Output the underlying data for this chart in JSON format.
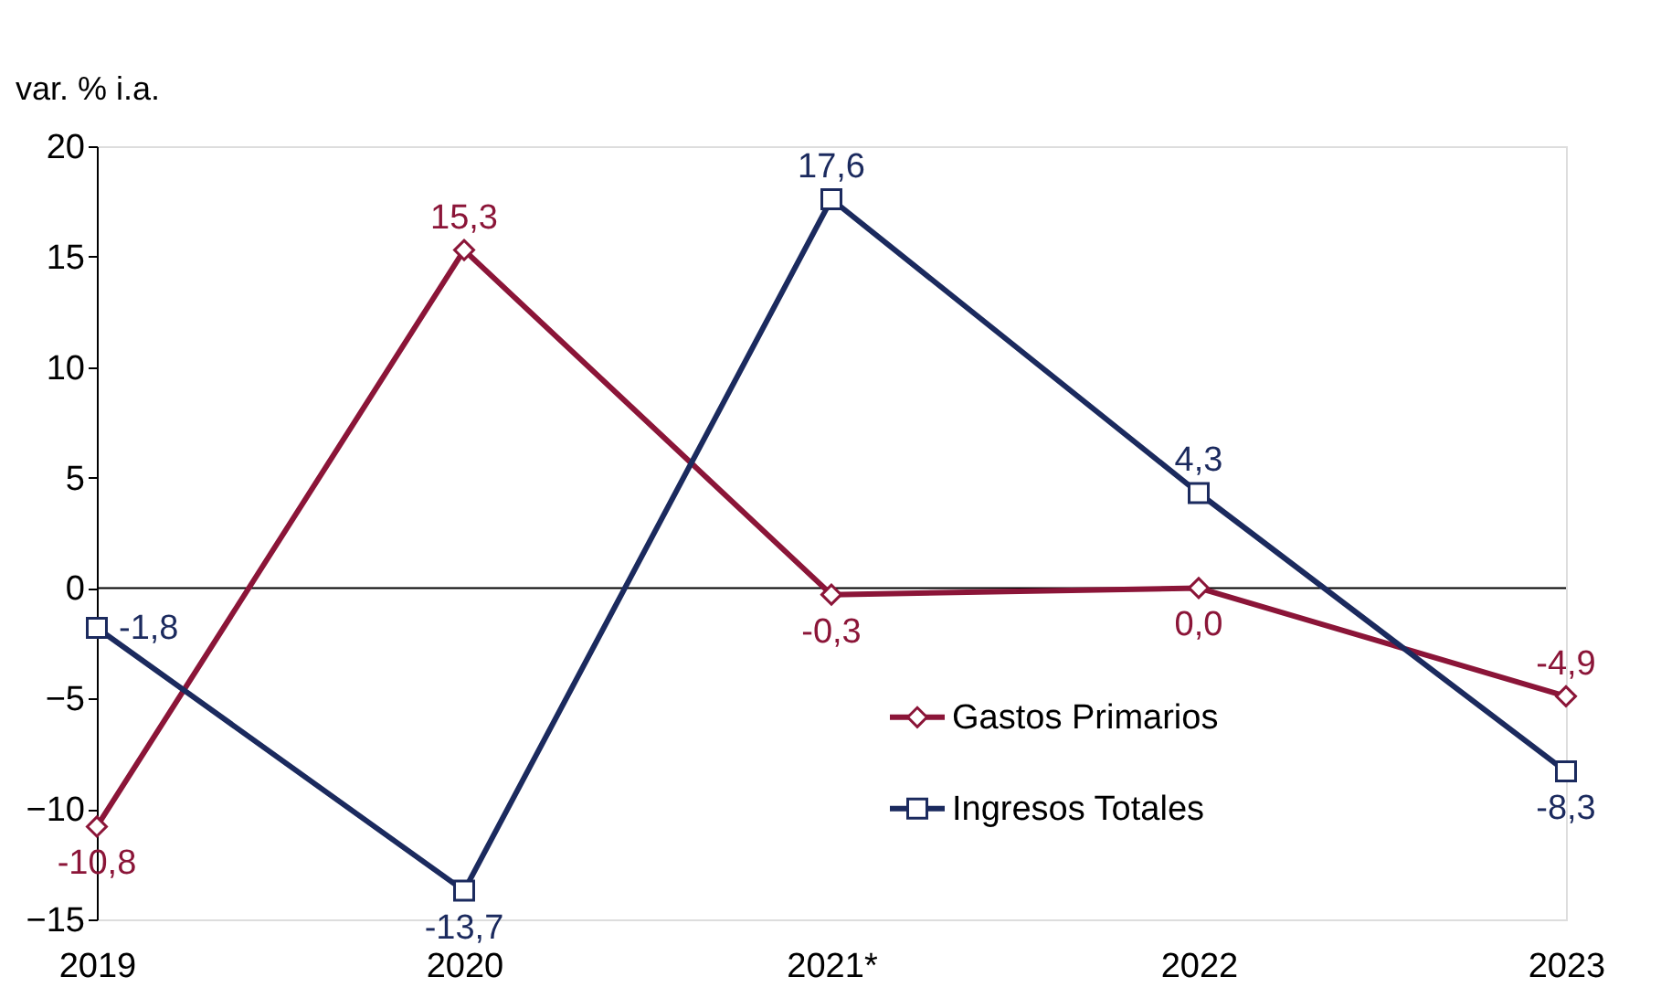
{
  "chart_data": {
    "type": "line",
    "ylabel": "var. % i.a.",
    "categories": [
      "2019",
      "2020",
      "2021*",
      "2022",
      "2023"
    ],
    "series": [
      {
        "name": "Gastos Primarios",
        "color": "#8b1538",
        "marker": "diamond",
        "values": [
          -10.8,
          15.3,
          -0.3,
          0.0,
          -4.9
        ],
        "value_labels": [
          "-10,8",
          "15,3",
          "-0,3",
          "0,0",
          "-4,9"
        ]
      },
      {
        "name": "Ingresos Totales",
        "color": "#1b2a5e",
        "marker": "square",
        "values": [
          -1.8,
          -13.7,
          17.6,
          4.3,
          -8.3
        ],
        "value_labels": [
          "-1,8",
          "-13,7",
          "17,6",
          "4,3",
          "-8,3"
        ]
      }
    ],
    "ylim": [
      -15,
      20
    ],
    "yticks": [
      -15,
      -10,
      -5,
      0,
      5,
      10,
      15,
      20
    ],
    "ref_lines": [
      {
        "axis": "y",
        "value": 0,
        "color": "#000000"
      }
    ],
    "grid": false,
    "legend": "bottom right",
    "line_style": "solid"
  }
}
